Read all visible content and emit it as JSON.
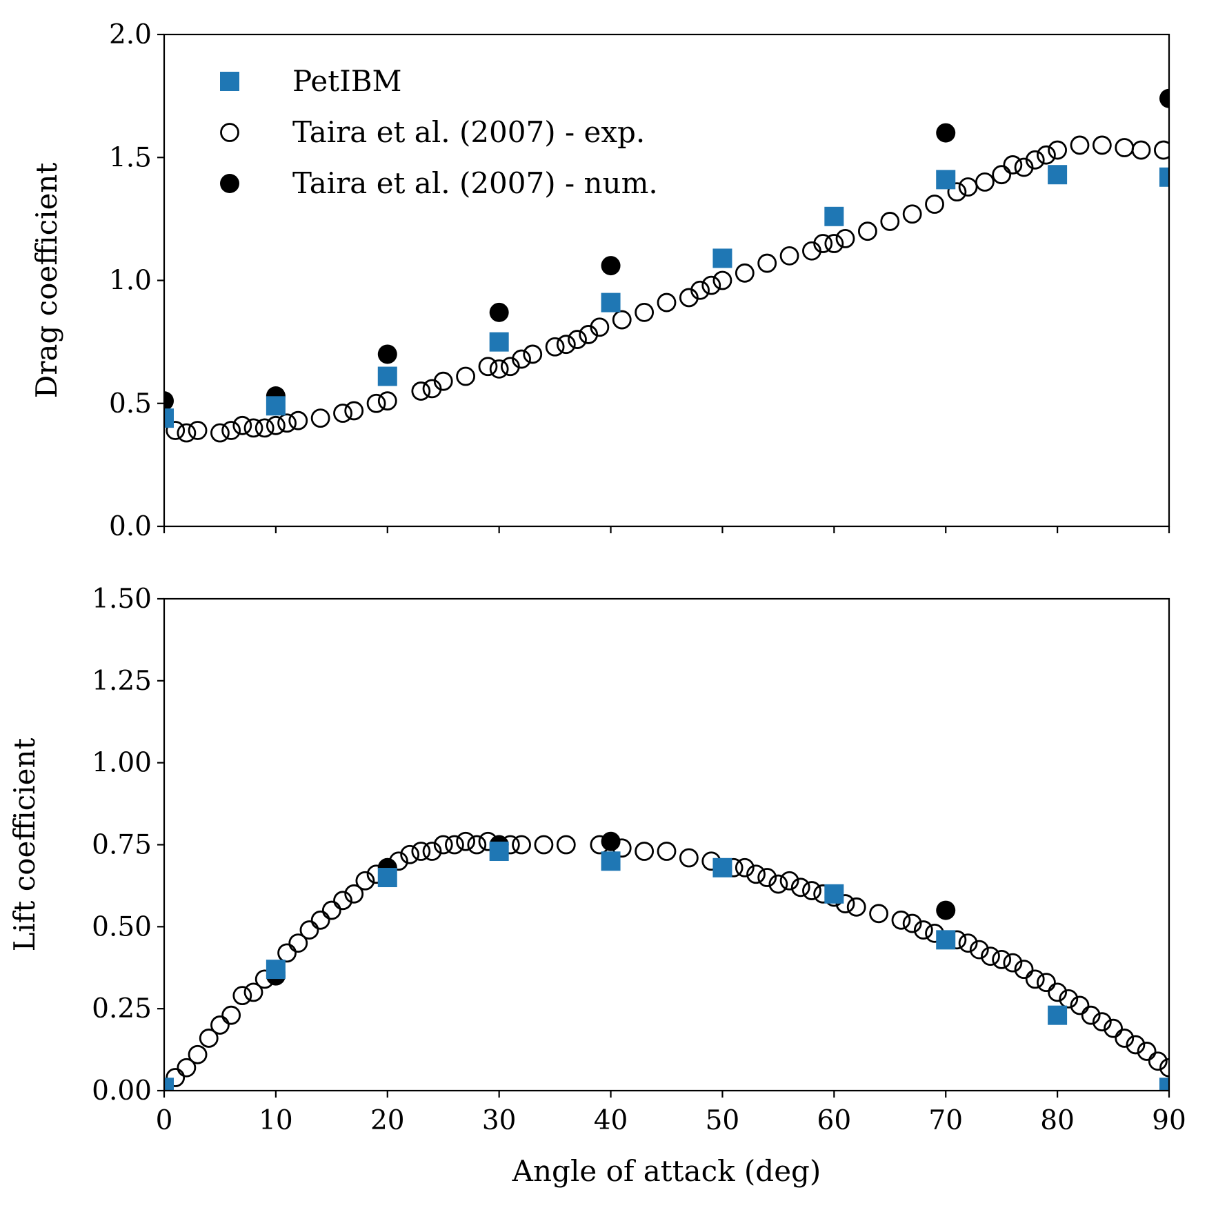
{
  "chart_data": [
    {
      "type": "scatter",
      "ylabel": "Drag coefficient",
      "xlim": [
        0,
        90
      ],
      "ylim": [
        0,
        2.0
      ],
      "xticks": [
        0,
        10,
        20,
        30,
        40,
        50,
        60,
        70,
        80,
        90
      ],
      "yticks": [
        "0.0",
        "0.5",
        "1.0",
        "1.5",
        "2.0"
      ],
      "xtick_labels_visible": false,
      "legend": "top-left",
      "series": [
        {
          "name": "PetIBM",
          "marker": "square",
          "color": "#1f77b4",
          "x": [
            0,
            10,
            20,
            30,
            40,
            50,
            60,
            70,
            80,
            90
          ],
          "y": [
            0.44,
            0.49,
            0.61,
            0.75,
            0.91,
            1.09,
            1.26,
            1.41,
            1.43,
            1.42
          ]
        },
        {
          "name": "Taira et al. (2007) - exp.",
          "marker": "circle-open",
          "color": "#000000",
          "x": [
            1,
            2,
            3,
            5,
            6,
            7,
            8,
            9,
            10,
            11,
            12,
            14,
            16,
            17,
            19,
            20,
            23,
            24,
            25,
            27,
            29,
            30,
            31,
            32,
            33,
            35,
            36,
            37,
            38,
            39,
            41,
            43,
            45,
            47,
            48,
            49,
            50,
            52,
            54,
            56,
            58,
            59,
            60,
            61,
            63,
            65,
            67,
            69,
            71,
            72,
            73.5,
            75,
            76,
            77,
            78,
            79,
            80,
            82,
            84,
            86,
            87.5,
            89.5
          ],
          "y": [
            0.39,
            0.38,
            0.39,
            0.38,
            0.39,
            0.41,
            0.4,
            0.4,
            0.41,
            0.42,
            0.43,
            0.44,
            0.46,
            0.47,
            0.5,
            0.51,
            0.55,
            0.56,
            0.59,
            0.61,
            0.65,
            0.64,
            0.65,
            0.68,
            0.7,
            0.73,
            0.74,
            0.76,
            0.78,
            0.81,
            0.84,
            0.87,
            0.91,
            0.93,
            0.96,
            0.98,
            1.0,
            1.03,
            1.07,
            1.1,
            1.12,
            1.15,
            1.15,
            1.17,
            1.2,
            1.24,
            1.27,
            1.31,
            1.36,
            1.38,
            1.4,
            1.43,
            1.47,
            1.46,
            1.49,
            1.51,
            1.53,
            1.55,
            1.55,
            1.54,
            1.53,
            1.53
          ]
        },
        {
          "name": "Taira et al. (2007) - num.",
          "marker": "circle-filled",
          "color": "#000000",
          "x": [
            0,
            10,
            20,
            30,
            40,
            70,
            90
          ],
          "y": [
            0.51,
            0.53,
            0.7,
            0.87,
            1.06,
            1.6,
            1.74
          ]
        }
      ]
    },
    {
      "type": "scatter",
      "ylabel": "Lift coefficient",
      "xlabel": "Angle of attack (deg)",
      "xlim": [
        0,
        90
      ],
      "ylim": [
        0,
        1.5
      ],
      "xticks": [
        0,
        10,
        20,
        30,
        40,
        50,
        60,
        70,
        80,
        90
      ],
      "xtick_labels": [
        "0",
        "10",
        "20",
        "30",
        "40",
        "50",
        "60",
        "70",
        "80",
        "90"
      ],
      "yticks": [
        "0.00",
        "0.25",
        "0.50",
        "0.75",
        "1.00",
        "1.25",
        "1.50"
      ],
      "series": [
        {
          "name": "PetIBM",
          "marker": "square",
          "color": "#1f77b4",
          "x": [
            0,
            10,
            20,
            30,
            40,
            50,
            60,
            70,
            80,
            90
          ],
          "y": [
            0.01,
            0.37,
            0.65,
            0.73,
            0.7,
            0.68,
            0.6,
            0.46,
            0.23,
            0.01
          ]
        },
        {
          "name": "Taira et al. (2007) - exp.",
          "marker": "circle-open",
          "color": "#000000",
          "x": [
            1,
            2,
            3,
            4,
            5,
            6,
            7,
            8,
            9,
            10,
            11,
            12,
            13,
            14,
            15,
            16,
            17,
            18,
            19,
            20,
            21,
            22,
            23,
            24,
            25,
            26,
            27,
            28,
            29,
            30,
            31,
            32,
            34,
            36,
            39,
            41,
            43,
            45,
            47,
            49,
            51,
            52,
            53,
            54,
            55,
            56,
            57,
            58,
            59,
            60,
            61,
            62,
            64,
            66,
            67,
            68,
            69,
            71,
            72,
            73,
            74,
            75,
            76,
            77,
            78,
            79,
            80,
            81,
            82,
            83,
            84,
            85,
            86,
            87,
            88,
            89,
            90
          ],
          "y": [
            0.04,
            0.07,
            0.11,
            0.16,
            0.2,
            0.23,
            0.29,
            0.3,
            0.34,
            0.36,
            0.42,
            0.45,
            0.49,
            0.52,
            0.55,
            0.58,
            0.6,
            0.64,
            0.66,
            0.68,
            0.7,
            0.72,
            0.73,
            0.73,
            0.75,
            0.75,
            0.76,
            0.75,
            0.76,
            0.74,
            0.75,
            0.75,
            0.75,
            0.75,
            0.75,
            0.74,
            0.73,
            0.73,
            0.71,
            0.7,
            0.68,
            0.68,
            0.66,
            0.65,
            0.63,
            0.64,
            0.62,
            0.61,
            0.6,
            0.59,
            0.57,
            0.56,
            0.54,
            0.52,
            0.51,
            0.49,
            0.48,
            0.46,
            0.45,
            0.43,
            0.41,
            0.4,
            0.39,
            0.37,
            0.34,
            0.33,
            0.3,
            0.28,
            0.26,
            0.23,
            0.21,
            0.19,
            0.16,
            0.14,
            0.12,
            0.09,
            0.07
          ]
        },
        {
          "name": "Taira et al. (2007) - num.",
          "marker": "circle-filled",
          "color": "#000000",
          "x": [
            10,
            20,
            30,
            40,
            70
          ],
          "y": [
            0.35,
            0.68,
            0.75,
            0.76,
            0.55
          ]
        }
      ]
    }
  ]
}
